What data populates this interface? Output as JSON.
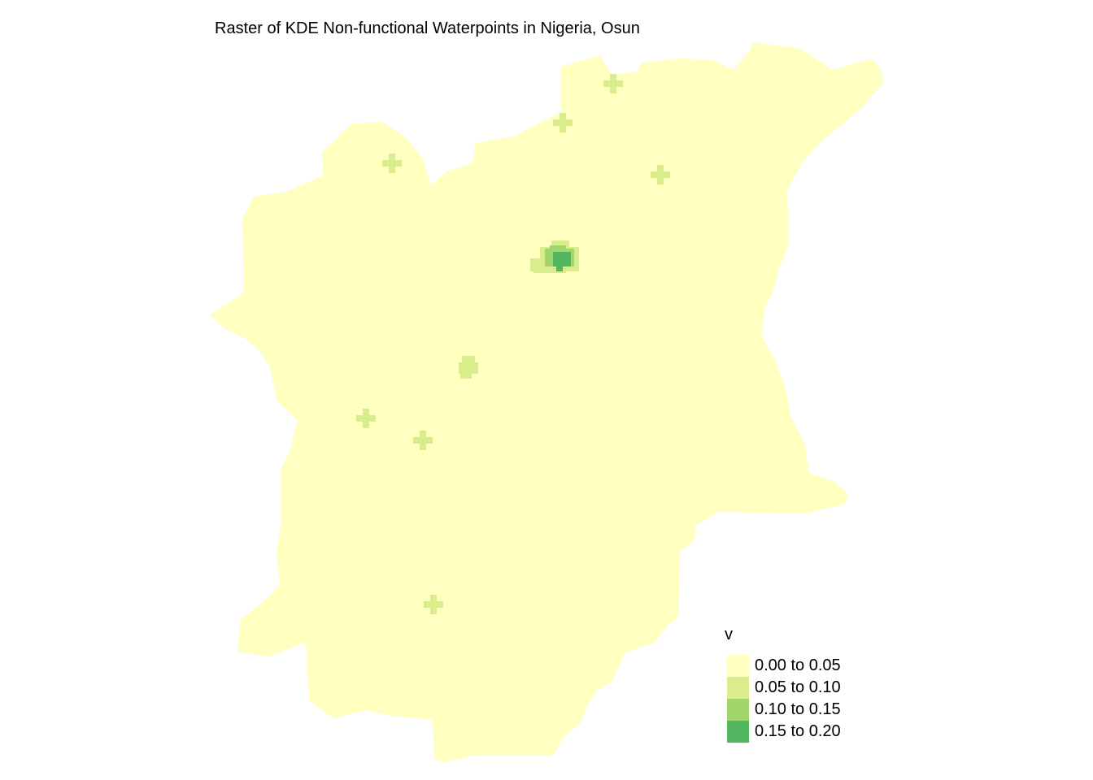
{
  "title": "Raster of KDE Non-functional Waterpoints in Nigeria, Osun",
  "legend": {
    "title": "v",
    "classes": [
      {
        "label": "0.00 to 0.05",
        "color": "#ffffc0"
      },
      {
        "label": "0.05 to 0.10",
        "color": "#d9ed8c"
      },
      {
        "label": "0.10 to 0.15",
        "color": "#a2d66c"
      },
      {
        "label": "0.15 to 0.20",
        "color": "#52b660"
      }
    ]
  }
}
